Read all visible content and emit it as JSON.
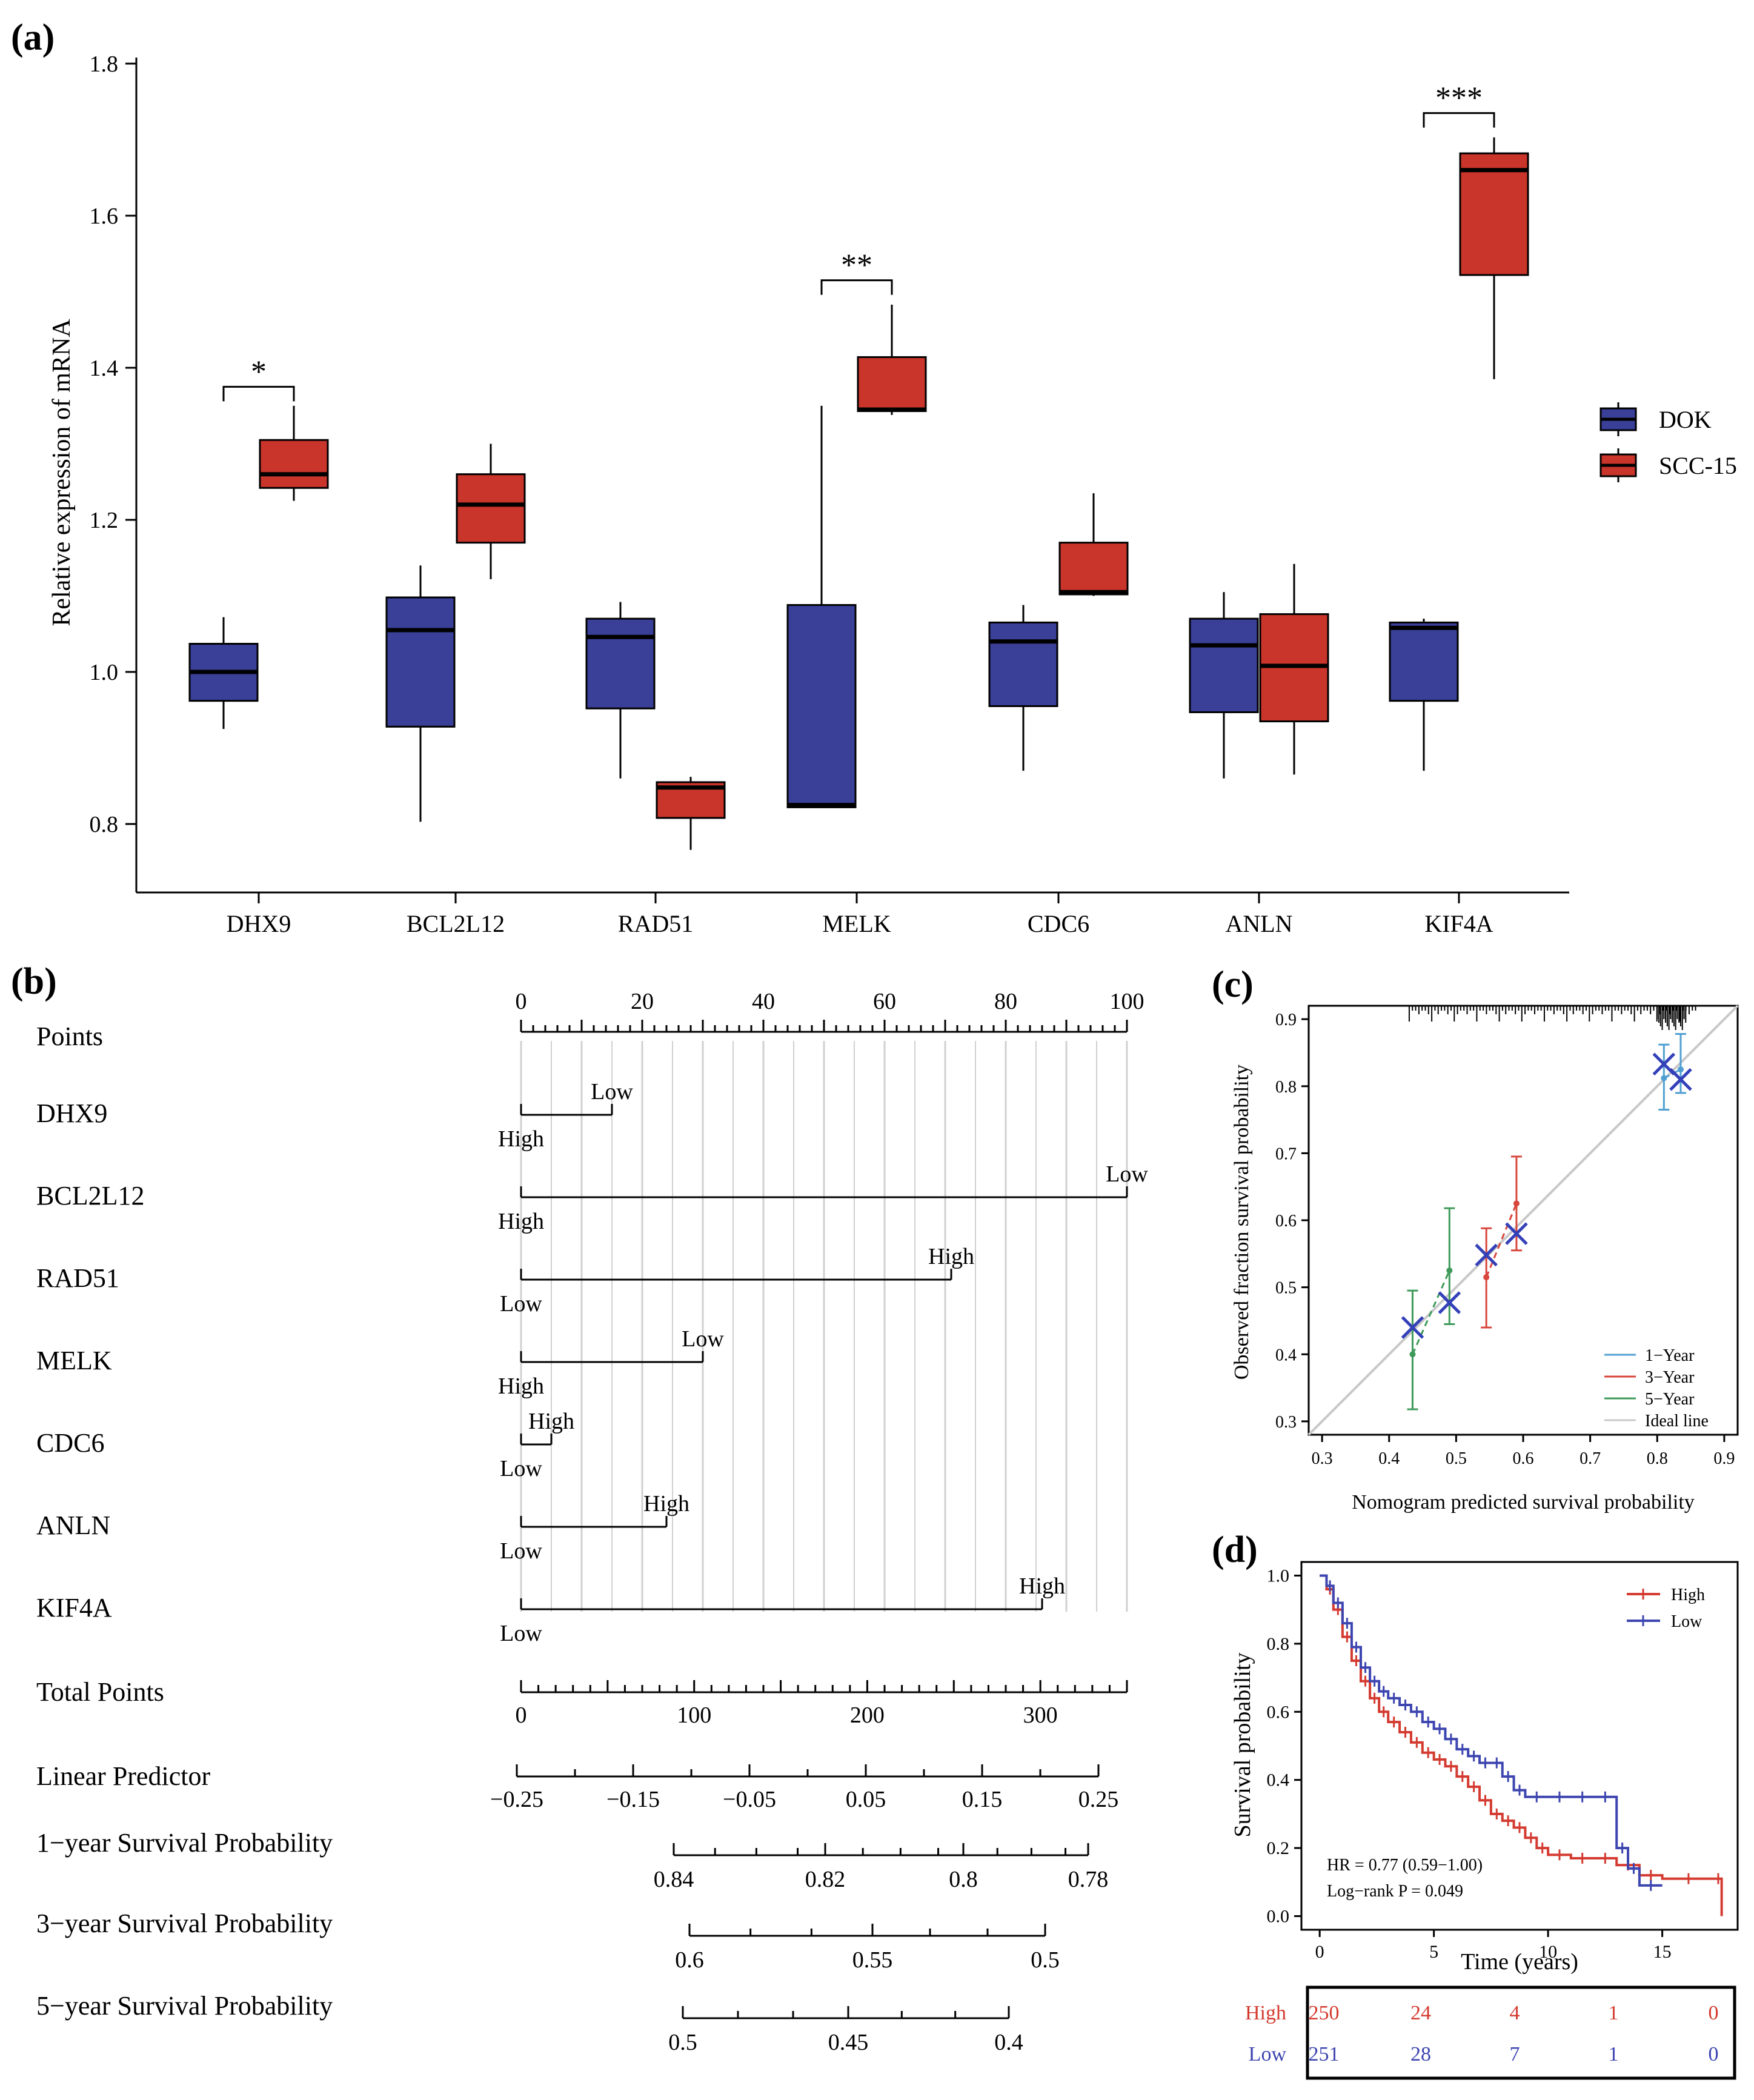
{
  "panel_labels": {
    "a": "(a)",
    "b": "(b)",
    "c": "(c)",
    "d": "(d)"
  },
  "colors": {
    "dok": "#3a3f98",
    "scc": "#c9352b",
    "km_high": "#d43a30",
    "km_low": "#3d45b0",
    "y1": "#4f9fd3",
    "y3": "#d8463c",
    "y5": "#3f9a5a",
    "ideal": "#c8c8c8",
    "grid": "#d0d0d0"
  },
  "chart_data": [
    {
      "type": "box",
      "panel": "a",
      "ylabel": "Relative expression of mRNA",
      "ylim": [
        0.7,
        1.8
      ],
      "yticks": [
        "0.8",
        "1.0",
        "1.2",
        "1.4",
        "1.6",
        "1.8"
      ],
      "categories": [
        "DHX9",
        "BCL2L12",
        "RAD51",
        "MELK",
        "CDC6",
        "ANLN",
        "KIF4A"
      ],
      "legend": [
        "DOK",
        "SCC-15"
      ],
      "series": [
        {
          "name": "DOK",
          "boxes": [
            {
              "whislo": 0.925,
              "q1": 0.962,
              "med": 1.0,
              "q3": 1.037,
              "whishi": 1.072
            },
            {
              "whislo": 0.803,
              "q1": 0.928,
              "med": 1.055,
              "q3": 1.098,
              "whishi": 1.14
            },
            {
              "whislo": 0.86,
              "q1": 0.952,
              "med": 1.046,
              "q3": 1.07,
              "whishi": 1.092
            },
            {
              "whislo": 0.822,
              "q1": 0.822,
              "med": 0.825,
              "q3": 1.088,
              "whishi": 1.35
            },
            {
              "whislo": 0.87,
              "q1": 0.955,
              "med": 1.04,
              "q3": 1.065,
              "whishi": 1.088
            },
            {
              "whislo": 0.86,
              "q1": 0.947,
              "med": 1.035,
              "q3": 1.07,
              "whishi": 1.105
            },
            {
              "whislo": 0.87,
              "q1": 0.962,
              "med": 1.058,
              "q3": 1.065,
              "whishi": 1.07
            }
          ]
        },
        {
          "name": "SCC-15",
          "boxes": [
            {
              "whislo": 1.225,
              "q1": 1.242,
              "med": 1.26,
              "q3": 1.305,
              "whishi": 1.35
            },
            {
              "whislo": 1.122,
              "q1": 1.17,
              "med": 1.22,
              "q3": 1.26,
              "whishi": 1.3
            },
            {
              "whislo": 0.766,
              "q1": 0.808,
              "med": 0.848,
              "q3": 0.855,
              "whishi": 0.862
            },
            {
              "whislo": 1.338,
              "q1": 1.343,
              "med": 1.345,
              "q3": 1.414,
              "whishi": 1.483
            },
            {
              "whislo": 1.1,
              "q1": 1.102,
              "med": 1.105,
              "q3": 1.17,
              "whishi": 1.235
            },
            {
              "whislo": 0.865,
              "q1": 0.935,
              "med": 1.008,
              "q3": 1.076,
              "whishi": 1.142
            },
            {
              "whislo": 1.385,
              "q1": 1.522,
              "med": 1.66,
              "q3": 1.682,
              "whishi": 1.703
            }
          ]
        }
      ],
      "significance": [
        {
          "category": "DHX9",
          "label": "*",
          "y": 1.375
        },
        {
          "category": "MELK",
          "label": "**",
          "y": 1.515
        },
        {
          "category": "KIF4A",
          "label": "***",
          "y": 1.735
        }
      ]
    },
    {
      "type": "nomogram",
      "panel": "b",
      "points_axis": {
        "label": "Points",
        "range": [
          0,
          100
        ],
        "ticks": [
          "0",
          "20",
          "40",
          "60",
          "80",
          "100"
        ]
      },
      "variables": [
        {
          "name": "DHX9",
          "top_label": "Low",
          "bottom_label": "High",
          "points": 15
        },
        {
          "name": "BCL2L12",
          "top_label": "Low",
          "bottom_label": "High",
          "points": 100
        },
        {
          "name": "RAD51",
          "top_label": "High",
          "bottom_label": "Low",
          "points": 71
        },
        {
          "name": "MELK",
          "top_label": "Low",
          "bottom_label": "High",
          "points": 30
        },
        {
          "name": "CDC6",
          "top_label": "High",
          "bottom_label": "Low",
          "points": 5
        },
        {
          "name": "ANLN",
          "top_label": "High",
          "bottom_label": "Low",
          "points": 24
        },
        {
          "name": "KIF4A",
          "top_label": "High",
          "bottom_label": "Low",
          "points": 86
        }
      ],
      "total_points": {
        "label": "Total Points",
        "range": [
          0,
          350
        ],
        "ticks": [
          "0",
          "100",
          "200",
          "300"
        ]
      },
      "linear_predictor": {
        "label": "Linear Predictor",
        "range": [
          -0.25,
          0.25
        ],
        "ticks": [
          "−0.25",
          "−0.15",
          "−0.05",
          "0.05",
          "0.15",
          "0.25"
        ]
      },
      "survival_scales": [
        {
          "label": "1−year Survival Probability",
          "ticks": [
            "0.84",
            "0.82",
            "0.8",
            "0.78"
          ]
        },
        {
          "label": "3−year Survival Probability",
          "ticks": [
            "0.6",
            "0.55",
            "0.5"
          ]
        },
        {
          "label": "5−year Survival Probability",
          "ticks": [
            "0.5",
            "0.45",
            "0.4"
          ]
        }
      ]
    },
    {
      "type": "calibration",
      "panel": "c",
      "xlabel": "Nomogram predicted survival probability",
      "ylabel": "Observed fraction survival probability",
      "xlim": [
        0.28,
        0.92
      ],
      "ylim": [
        0.28,
        0.92
      ],
      "xticks": [
        "0.3",
        "0.4",
        "0.5",
        "0.6",
        "0.7",
        "0.8",
        "0.9"
      ],
      "yticks": [
        "0.3",
        "0.4",
        "0.5",
        "0.6",
        "0.7",
        "0.8",
        "0.9"
      ],
      "legend": [
        "1−Year",
        "3−Year",
        "5−Year",
        "Ideal line"
      ],
      "series": [
        {
          "name": "1−Year",
          "points": [
            {
              "x": 0.81,
              "y": 0.812,
              "lo": 0.765,
              "hi": 0.862
            },
            {
              "x": 0.835,
              "y": 0.825,
              "lo": 0.79,
              "hi": 0.878
            }
          ]
        },
        {
          "name": "3−Year",
          "points": [
            {
              "x": 0.545,
              "y": 0.515,
              "lo": 0.44,
              "hi": 0.588
            },
            {
              "x": 0.59,
              "y": 0.625,
              "lo": 0.555,
              "hi": 0.695
            }
          ]
        },
        {
          "name": "5−Year",
          "points": [
            {
              "x": 0.435,
              "y": 0.4,
              "lo": 0.318,
              "hi": 0.495
            },
            {
              "x": 0.49,
              "y": 0.525,
              "lo": 0.445,
              "hi": 0.618
            }
          ]
        }
      ],
      "markers": [
        {
          "x": 0.435,
          "y": 0.44
        },
        {
          "x": 0.49,
          "y": 0.477
        },
        {
          "x": 0.545,
          "y": 0.548
        },
        {
          "x": 0.59,
          "y": 0.58
        },
        {
          "x": 0.81,
          "y": 0.833
        },
        {
          "x": 0.835,
          "y": 0.81
        }
      ]
    },
    {
      "type": "line",
      "subtype": "kaplan-meier",
      "panel": "d",
      "xlabel": "Time (years)",
      "ylabel": "Survival probability",
      "xlim": [
        -0.8,
        18.3
      ],
      "ylim": [
        -0.04,
        1.04
      ],
      "xticks": [
        "0",
        "5",
        "10",
        "15"
      ],
      "yticks": [
        "0.0",
        "0.2",
        "0.4",
        "0.6",
        "0.8",
        "1.0"
      ],
      "legend": [
        "High",
        "Low"
      ],
      "annotations": [
        "HR = 0.77 (0.59−1.00)",
        "Log−rank P = 0.049"
      ],
      "series": [
        {
          "name": "High",
          "x": [
            0,
            0.3,
            0.6,
            1.0,
            1.4,
            1.8,
            2.2,
            2.6,
            3.0,
            3.5,
            4.0,
            4.5,
            5.0,
            5.5,
            6.0,
            6.5,
            7.0,
            7.5,
            8.0,
            8.5,
            9.0,
            9.5,
            10.0,
            11.0,
            12.0,
            13.0,
            14.0,
            15.0,
            17.3,
            17.6
          ],
          "y": [
            1.0,
            0.96,
            0.9,
            0.82,
            0.75,
            0.69,
            0.64,
            0.6,
            0.57,
            0.54,
            0.51,
            0.48,
            0.46,
            0.44,
            0.41,
            0.38,
            0.34,
            0.3,
            0.28,
            0.26,
            0.23,
            0.2,
            0.18,
            0.17,
            0.17,
            0.15,
            0.12,
            0.11,
            0.11,
            0.0
          ]
        },
        {
          "name": "Low",
          "x": [
            0,
            0.3,
            0.6,
            1.0,
            1.4,
            1.8,
            2.2,
            2.6,
            3.0,
            3.5,
            4.0,
            4.5,
            5.0,
            5.5,
            6.0,
            6.5,
            7.0,
            7.5,
            8.0,
            8.5,
            9.0,
            10.0,
            11.0,
            12.0,
            13.0,
            13.5,
            14.0,
            15.0
          ],
          "y": [
            1.0,
            0.97,
            0.92,
            0.86,
            0.79,
            0.73,
            0.69,
            0.66,
            0.64,
            0.62,
            0.6,
            0.57,
            0.55,
            0.52,
            0.49,
            0.47,
            0.45,
            0.45,
            0.41,
            0.37,
            0.35,
            0.35,
            0.35,
            0.35,
            0.2,
            0.14,
            0.09,
            0.09
          ]
        }
      ],
      "risk_table": {
        "rows": [
          {
            "name": "High",
            "counts": [
              "250",
              "24",
              "4",
              "1",
              "0"
            ]
          },
          {
            "name": "Low",
            "counts": [
              "251",
              "28",
              "7",
              "1",
              "0"
            ]
          }
        ]
      }
    }
  ]
}
